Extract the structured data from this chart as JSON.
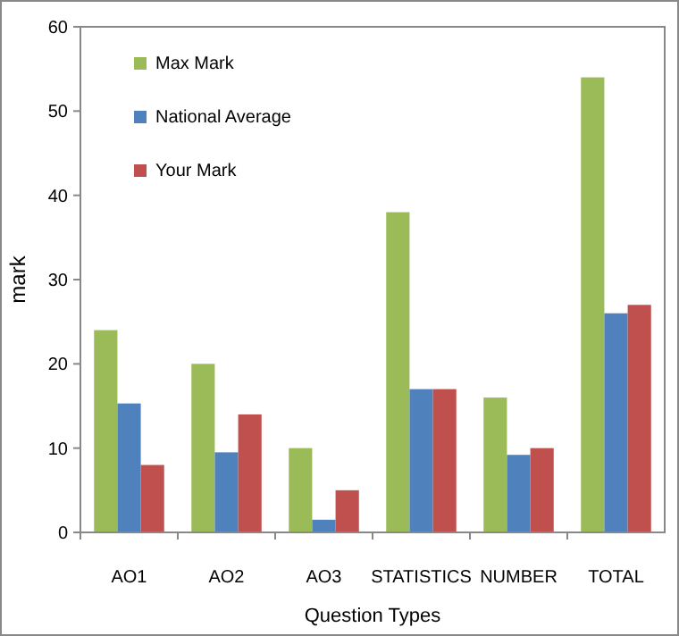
{
  "chart_data": {
    "type": "bar",
    "xlabel": "Question Types",
    "ylabel": "mark",
    "categories": [
      "AO1",
      "AO2",
      "AO3",
      "STATISTICS",
      "NUMBER",
      "TOTAL"
    ],
    "series": [
      {
        "name": "Max Mark",
        "color": "#9bbb59",
        "values": [
          24,
          20,
          10,
          38,
          16,
          54
        ]
      },
      {
        "name": "National Average",
        "color": "#4f81bd",
        "values": [
          15.3,
          9.5,
          1.5,
          17,
          9.2,
          26
        ]
      },
      {
        "name": "Your Mark",
        "color": "#c0504d",
        "values": [
          8,
          14,
          5,
          17,
          10,
          27
        ]
      }
    ],
    "ylim": [
      0,
      60
    ],
    "yticks": [
      0,
      10,
      20,
      30,
      40,
      50,
      60
    ],
    "legend": "top left",
    "grid": false
  }
}
